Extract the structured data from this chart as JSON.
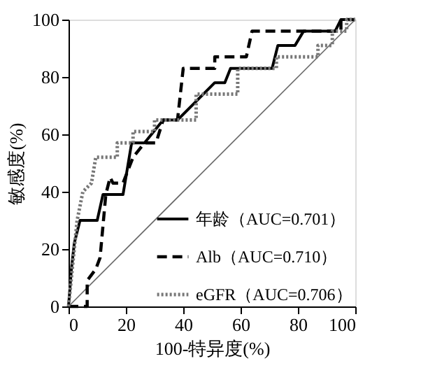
{
  "chart_data": {
    "type": "line",
    "xlabel": "100-特异度(%)",
    "ylabel": "敏感度(%)",
    "xlim": [
      0,
      100
    ],
    "ylim": [
      0,
      100
    ],
    "xticks": [
      0,
      20,
      40,
      60,
      80,
      100
    ],
    "yticks": [
      0,
      20,
      40,
      60,
      80,
      100
    ],
    "grid": false,
    "legend": "bottom right",
    "series": [
      {
        "name": "年龄（AUC=0.701）",
        "color": "#000000",
        "line_style": "solid",
        "x": [
          0,
          1,
          2,
          3,
          4,
          10,
          12,
          19,
          22,
          26.5,
          33,
          38,
          51,
          54.5,
          56.5,
          71,
          73,
          79,
          82,
          93,
          95,
          100
        ],
        "values": [
          0,
          13,
          22,
          26,
          30,
          30,
          39,
          39,
          57,
          57,
          65,
          65,
          78,
          78,
          83,
          83,
          91,
          91,
          96,
          96,
          100,
          100
        ]
      },
      {
        "name": "Alb（AUC=0.710）",
        "color": "#000000",
        "line_style": "dashed",
        "x": [
          0,
          6.5,
          6.5,
          9.5,
          11,
          13,
          14.5,
          15.5,
          19,
          22.5,
          26.5,
          30.5,
          33,
          38,
          40,
          51,
          51,
          62,
          64,
          95,
          95,
          100
        ],
        "values": [
          0,
          0,
          9,
          13,
          17,
          39,
          45,
          43,
          43,
          52,
          57,
          57,
          65,
          65,
          83,
          83,
          87,
          87,
          96,
          96,
          100,
          100
        ]
      },
      {
        "name": "eGFR（AUC=0.706）",
        "color": "#777777",
        "line_style": "dotted",
        "x": [
          0,
          1,
          2,
          3,
          5,
          8,
          9.5,
          17,
          17,
          22.5,
          22.5,
          30,
          30,
          44.5,
          44.5,
          59,
          59,
          72.5,
          72.5,
          87,
          87,
          92,
          92,
          97,
          97,
          100
        ],
        "values": [
          0,
          10,
          20,
          30,
          40,
          43,
          52,
          52,
          57,
          57,
          61,
          61,
          65,
          65,
          74,
          74,
          83,
          83,
          87,
          87,
          91,
          91,
          96,
          96,
          100,
          100
        ]
      },
      {
        "color": "#666666",
        "line_style": "solid",
        "x": [
          0,
          100
        ],
        "values": [
          0,
          100
        ]
      }
    ]
  }
}
